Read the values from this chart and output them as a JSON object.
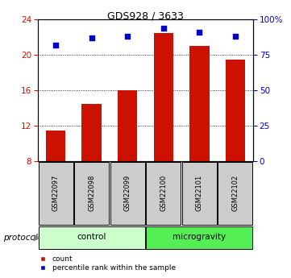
{
  "title": "GDS928 / 3633",
  "samples": [
    "GSM22097",
    "GSM22098",
    "GSM22099",
    "GSM22100",
    "GSM22101",
    "GSM22102"
  ],
  "bar_values": [
    11.5,
    14.5,
    16.0,
    22.5,
    21.0,
    19.5
  ],
  "bar_bottom": 8,
  "scatter_values": [
    82,
    87,
    88,
    94,
    91,
    88
  ],
  "left_ylim": [
    8,
    24
  ],
  "left_yticks": [
    8,
    12,
    16,
    20,
    24
  ],
  "right_ylim": [
    0,
    100
  ],
  "right_yticks": [
    0,
    25,
    50,
    75,
    100
  ],
  "right_yticklabels": [
    "0",
    "25",
    "50",
    "75",
    "100%"
  ],
  "bar_color": "#cc1100",
  "scatter_color": "#0000cc",
  "left_tick_color": "#cc1100",
  "right_tick_color": "#0000cc",
  "groups": [
    {
      "label": "control",
      "indices": [
        0,
        1,
        2
      ],
      "color": "#ccffcc"
    },
    {
      "label": "microgravity",
      "indices": [
        3,
        4,
        5
      ],
      "color": "#55ee55"
    }
  ],
  "protocol_label": "protocol",
  "legend_items": [
    {
      "color": "#cc1100",
      "label": "count"
    },
    {
      "color": "#0000cc",
      "label": "percentile rank within the sample"
    }
  ],
  "bg_color": "#ffffff",
  "sample_box_color": "#cccccc"
}
